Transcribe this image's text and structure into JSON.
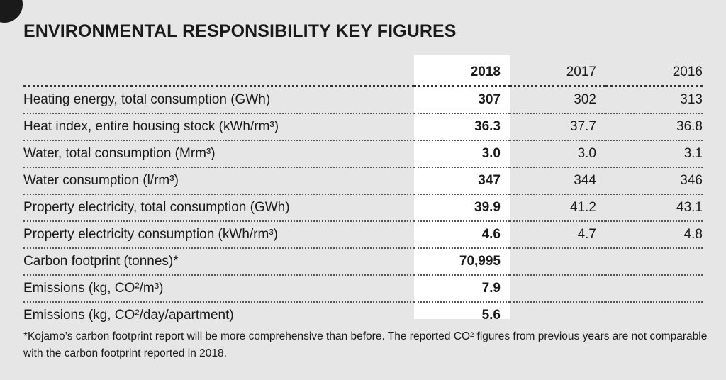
{
  "title": "ENVIRONMENTAL RESPONSIBILITY KEY FIGURES",
  "columns": [
    "2018",
    "2017",
    "2016"
  ],
  "rows": [
    {
      "label": "Heating energy, total consumption (GWh)",
      "v2018": "307",
      "v2017": "302",
      "v2016": "313"
    },
    {
      "label": "Heat index, entire housing stock (kWh/rm³)",
      "v2018": "36.3",
      "v2017": "37.7",
      "v2016": "36.8"
    },
    {
      "label": "Water, total consumption (Mrm³)",
      "v2018": "3.0",
      "v2017": "3.0",
      "v2016": "3.1"
    },
    {
      "label": "Water consumption (l/rm³)",
      "v2018": "347",
      "v2017": "344",
      "v2016": "346"
    },
    {
      "label": "Property electricity, total consumption (GWh)",
      "v2018": "39.9",
      "v2017": "41.2",
      "v2016": "43.1"
    },
    {
      "label": "Property electricity consumption (kWh/rm³)",
      "v2018": "4.6",
      "v2017": "4.7",
      "v2016": "4.8"
    },
    {
      "label": "Carbon footprint (tonnes)*",
      "v2018": "70,995",
      "v2017": "",
      "v2016": ""
    },
    {
      "label": "Emissions (kg, CO²/m³)",
      "v2018": "7.9",
      "v2017": "",
      "v2016": ""
    },
    {
      "label": "Emissions (kg, CO²/day/apartment)",
      "v2018": "5.6",
      "v2017": "",
      "v2016": ""
    }
  ],
  "footnote": "*Kojamo’s carbon footprint report will be more comprehensive than before. The reported CO² figures from previous years are not comparable with the carbon footprint reported in 2018."
}
